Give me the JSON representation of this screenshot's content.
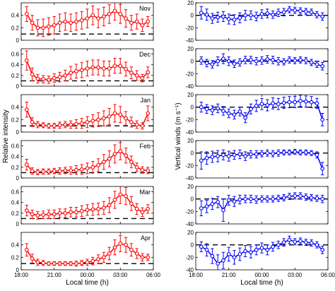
{
  "figure": {
    "left_ylabel": "Relative intensity",
    "right_ylabel": "Vertical winds (m s⁻¹)",
    "xlabel": "Local time (h)",
    "x_ticks": [
      {
        "value": 18,
        "label": "18:00"
      },
      {
        "value": 21,
        "label": "21:00"
      },
      {
        "value": 24,
        "label": "00:00"
      },
      {
        "value": 27,
        "label": "03:00"
      },
      {
        "value": 30,
        "label": "06:00"
      }
    ]
  },
  "colors": {
    "intensity": "#ff0000",
    "winds": "#0000ff",
    "reference": "#000000"
  },
  "chart_data": [
    {
      "type": "line",
      "panel": "intensity",
      "month": "Nov",
      "xlim": [
        18,
        30
      ],
      "ylim": [
        0,
        0.6
      ],
      "yticks": [
        0,
        0.2,
        0.4
      ],
      "yticklabels": [
        "0",
        "0.2",
        "0.4"
      ],
      "reference_y": 0.1,
      "x": [
        18.5,
        19,
        19.5,
        20,
        20.5,
        21,
        21.5,
        22,
        22.5,
        23,
        23.5,
        24,
        24.5,
        25,
        25.5,
        26,
        26.5,
        27,
        27.5,
        28,
        28.5,
        29,
        29.5
      ],
      "y": [
        0.42,
        0.28,
        0.2,
        0.2,
        0.22,
        0.24,
        0.28,
        0.3,
        0.28,
        0.3,
        0.32,
        0.35,
        0.4,
        0.35,
        0.38,
        0.42,
        0.47,
        0.42,
        0.35,
        0.28,
        0.3,
        0.24,
        0.3
      ],
      "err": [
        0.12,
        0.12,
        0.13,
        0.14,
        0.14,
        0.14,
        0.14,
        0.14,
        0.14,
        0.14,
        0.14,
        0.15,
        0.15,
        0.15,
        0.15,
        0.15,
        0.15,
        0.15,
        0.14,
        0.12,
        0.12,
        0.1,
        0.08
      ]
    },
    {
      "type": "line",
      "panel": "intensity",
      "month": "Dec",
      "xlim": [
        18,
        30
      ],
      "ylim": [
        0,
        0.7
      ],
      "yticks": [
        0,
        0.2,
        0.4,
        0.6
      ],
      "yticklabels": [
        "0",
        "0.2",
        "0.4",
        "0.6"
      ],
      "reference_y": 0.1,
      "x": [
        18.5,
        19,
        19.5,
        20,
        20.5,
        21,
        21.5,
        22,
        22.5,
        23,
        23.5,
        24,
        24.5,
        25,
        25.5,
        26,
        26.5,
        27,
        27.5,
        28,
        28.5,
        29,
        29.5
      ],
      "y": [
        0.48,
        0.22,
        0.14,
        0.13,
        0.12,
        0.15,
        0.17,
        0.2,
        0.25,
        0.28,
        0.3,
        0.33,
        0.35,
        0.35,
        0.33,
        0.33,
        0.38,
        0.38,
        0.32,
        0.25,
        0.2,
        0.15,
        0.26
      ],
      "err": [
        0.18,
        0.12,
        0.08,
        0.07,
        0.07,
        0.08,
        0.09,
        0.1,
        0.12,
        0.13,
        0.14,
        0.14,
        0.14,
        0.14,
        0.14,
        0.14,
        0.14,
        0.14,
        0.13,
        0.11,
        0.09,
        0.07,
        0.1
      ]
    },
    {
      "type": "line",
      "panel": "intensity",
      "month": "Jan",
      "xlim": [
        18,
        30
      ],
      "ylim": [
        0,
        0.6
      ],
      "yticks": [
        0,
        0.2,
        0.4
      ],
      "yticklabels": [
        "0",
        "0.2",
        "0.4"
      ],
      "reference_y": 0.1,
      "x": [
        18.5,
        19,
        19.5,
        20,
        20.5,
        21,
        21.5,
        22,
        22.5,
        23,
        23.5,
        24,
        24.5,
        25,
        25.5,
        26,
        26.5,
        27,
        27.5,
        28,
        28.5,
        29,
        29.5
      ],
      "y": [
        0.36,
        0.16,
        0.12,
        0.11,
        0.1,
        0.1,
        0.11,
        0.12,
        0.12,
        0.13,
        0.14,
        0.16,
        0.18,
        0.2,
        0.22,
        0.25,
        0.3,
        0.28,
        0.22,
        0.16,
        0.12,
        0.1,
        0.3
      ],
      "err": [
        0.12,
        0.07,
        0.05,
        0.04,
        0.04,
        0.04,
        0.05,
        0.05,
        0.06,
        0.07,
        0.08,
        0.09,
        0.1,
        0.11,
        0.12,
        0.13,
        0.14,
        0.13,
        0.11,
        0.08,
        0.06,
        0.05,
        0.12
      ]
    },
    {
      "type": "line",
      "panel": "intensity",
      "month": "Feb",
      "xlim": [
        18,
        30
      ],
      "ylim": [
        0,
        0.7
      ],
      "yticks": [
        0,
        0.2,
        0.4,
        0.6
      ],
      "yticklabels": [
        "0",
        "0.2",
        "0.4",
        "0.6"
      ],
      "reference_y": 0.1,
      "x": [
        18.5,
        19,
        19.5,
        20,
        20.5,
        21,
        21.5,
        22,
        22.5,
        23,
        23.5,
        24,
        24.5,
        25,
        25.5,
        26,
        26.5,
        27,
        27.5,
        28,
        28.5,
        29,
        29.5
      ],
      "y": [
        0.25,
        0.13,
        0.11,
        0.12,
        0.12,
        0.13,
        0.13,
        0.14,
        0.14,
        0.15,
        0.16,
        0.18,
        0.2,
        0.24,
        0.3,
        0.36,
        0.45,
        0.5,
        0.42,
        0.3,
        0.2,
        0.15,
        0.14
      ],
      "err": [
        0.1,
        0.06,
        0.05,
        0.05,
        0.05,
        0.05,
        0.06,
        0.06,
        0.07,
        0.08,
        0.09,
        0.1,
        0.11,
        0.12,
        0.14,
        0.15,
        0.17,
        0.16,
        0.14,
        0.11,
        0.08,
        0.06,
        0.06
      ]
    },
    {
      "type": "line",
      "panel": "intensity",
      "month": "Mar",
      "xlim": [
        18,
        30
      ],
      "ylim": [
        0,
        0.7
      ],
      "yticks": [
        0,
        0.2,
        0.4,
        0.6
      ],
      "yticklabels": [
        "0",
        "0.2",
        "0.4",
        "0.6"
      ],
      "reference_y": 0.1,
      "x": [
        18.5,
        19,
        19.5,
        20,
        20.5,
        21,
        21.5,
        22,
        22.5,
        23,
        23.5,
        24,
        24.5,
        25,
        25.5,
        26,
        26.5,
        27,
        27.5,
        28,
        28.5,
        29,
        29.5
      ],
      "y": [
        0.25,
        0.18,
        0.16,
        0.17,
        0.18,
        0.18,
        0.2,
        0.2,
        0.22,
        0.22,
        0.24,
        0.26,
        0.27,
        0.28,
        0.3,
        0.35,
        0.45,
        0.55,
        0.52,
        0.38,
        0.28,
        0.22,
        0.28
      ],
      "err": [
        0.1,
        0.08,
        0.07,
        0.07,
        0.08,
        0.08,
        0.08,
        0.08,
        0.09,
        0.09,
        0.1,
        0.1,
        0.11,
        0.11,
        0.12,
        0.14,
        0.16,
        0.17,
        0.16,
        0.13,
        0.1,
        0.08,
        0.08
      ]
    },
    {
      "type": "line",
      "panel": "intensity",
      "month": "Apr",
      "xlim": [
        18,
        30
      ],
      "ylim": [
        0,
        0.6
      ],
      "yticks": [
        0,
        0.2,
        0.4
      ],
      "yticklabels": [
        "0",
        "0.2",
        "0.4"
      ],
      "reference_y": 0.1,
      "x": [
        18.5,
        19,
        19.5,
        20,
        20.5,
        21,
        21.5,
        22,
        22.5,
        23,
        23.5,
        24,
        24.5,
        25,
        25.5,
        26,
        26.5,
        27,
        27.5,
        28,
        28.5,
        29,
        29.5
      ],
      "y": [
        0.32,
        0.18,
        0.12,
        0.11,
        0.1,
        0.1,
        0.1,
        0.1,
        0.1,
        0.1,
        0.11,
        0.12,
        0.14,
        0.17,
        0.2,
        0.26,
        0.36,
        0.42,
        0.4,
        0.32,
        0.26,
        0.2,
        0.2
      ],
      "err": [
        0.1,
        0.07,
        0.05,
        0.04,
        0.03,
        0.03,
        0.03,
        0.03,
        0.03,
        0.04,
        0.04,
        0.05,
        0.06,
        0.07,
        0.08,
        0.1,
        0.12,
        0.13,
        0.12,
        0.1,
        0.08,
        0.06,
        0.05
      ]
    },
    {
      "type": "line",
      "panel": "winds",
      "month": "Nov",
      "xlim": [
        18,
        30
      ],
      "ylim": [
        -40,
        20
      ],
      "yticks": [
        -40,
        -20,
        0,
        20
      ],
      "yticklabels": [
        "-40",
        "-20",
        "0",
        "20"
      ],
      "reference_y": 0,
      "x": [
        18.5,
        19,
        19.5,
        20,
        20.5,
        21,
        21.5,
        22,
        22.5,
        23,
        23.5,
        24,
        24.5,
        25,
        25.5,
        26,
        26.5,
        27,
        27.5,
        28,
        28.5,
        29,
        29.5
      ],
      "y": [
        4,
        1,
        -5,
        -3,
        -2,
        -6,
        -7,
        -4,
        0,
        0,
        -2,
        2,
        3,
        1,
        4,
        5,
        9,
        8,
        7,
        6,
        5,
        1,
        -2
      ],
      "err": [
        10,
        9,
        8,
        8,
        8,
        8,
        8,
        8,
        8,
        7,
        7,
        7,
        7,
        6,
        6,
        6,
        5,
        5,
        5,
        5,
        5,
        5,
        6
      ]
    },
    {
      "type": "line",
      "panel": "winds",
      "month": "Dec",
      "xlim": [
        18,
        30
      ],
      "ylim": [
        -40,
        20
      ],
      "yticks": [
        -40,
        -20,
        0,
        20
      ],
      "yticklabels": [
        "-40",
        "-20",
        "0",
        "20"
      ],
      "reference_y": 0,
      "x": [
        18.5,
        19,
        19.5,
        20,
        20.5,
        21,
        21.5,
        22,
        22.5,
        23,
        23.5,
        24,
        24.5,
        25,
        25.5,
        26,
        26.5,
        27,
        27.5,
        28,
        28.5,
        29,
        29.5
      ],
      "y": [
        1,
        -3,
        -5,
        0,
        4,
        0,
        -4,
        -2,
        2,
        2,
        0,
        1,
        3,
        2,
        0,
        -1,
        2,
        1,
        2,
        1,
        -2,
        -5,
        -8
      ],
      "err": [
        6,
        6,
        6,
        7,
        8,
        7,
        6,
        6,
        6,
        6,
        6,
        6,
        6,
        6,
        6,
        5,
        5,
        5,
        5,
        5,
        5,
        5,
        6
      ]
    },
    {
      "type": "line",
      "panel": "winds",
      "month": "Jan",
      "xlim": [
        18,
        30
      ],
      "ylim": [
        -40,
        20
      ],
      "yticks": [
        -40,
        -20,
        0,
        20
      ],
      "yticklabels": [
        "-40",
        "-20",
        "0",
        "20"
      ],
      "reference_y": 0,
      "x": [
        18.5,
        19,
        19.5,
        20,
        20.5,
        21,
        21.5,
        22,
        22.5,
        23,
        23.5,
        24,
        24.5,
        25,
        25.5,
        26,
        26.5,
        27,
        27.5,
        28,
        28.5,
        29,
        29.5
      ],
      "y": [
        0,
        -3,
        -5,
        -2,
        -6,
        -10,
        -12,
        -7,
        -17,
        -3,
        2,
        5,
        3,
        6,
        5,
        7,
        8,
        8,
        10,
        9,
        8,
        6,
        -20
      ],
      "err": [
        8,
        7,
        7,
        7,
        7,
        7,
        7,
        7,
        8,
        8,
        9,
        9,
        9,
        9,
        9,
        9,
        9,
        9,
        9,
        9,
        9,
        8,
        10
      ]
    },
    {
      "type": "line",
      "panel": "winds",
      "month": "Feb",
      "xlim": [
        18,
        30
      ],
      "ylim": [
        -40,
        20
      ],
      "yticks": [
        -40,
        -20,
        0,
        20
      ],
      "yticklabels": [
        "-40",
        "-20",
        "0",
        "20"
      ],
      "reference_y": 0,
      "x": [
        18.5,
        19,
        19.5,
        20,
        20.5,
        21,
        21.5,
        22,
        22.5,
        23,
        23.5,
        24,
        24.5,
        25,
        25.5,
        26,
        26.5,
        27,
        27.5,
        28,
        28.5,
        29,
        29.5
      ],
      "y": [
        -12,
        -8,
        -6,
        -5,
        -3,
        -5,
        -3,
        -2,
        -5,
        -2,
        -2,
        -1,
        0,
        -1,
        0,
        1,
        1,
        2,
        1,
        1,
        0,
        -3,
        -25
      ],
      "err": [
        14,
        10,
        9,
        9,
        8,
        8,
        7,
        7,
        7,
        6,
        6,
        5,
        5,
        5,
        5,
        4,
        4,
        4,
        4,
        4,
        4,
        5,
        10
      ]
    },
    {
      "type": "line",
      "panel": "winds",
      "month": "Mar",
      "xlim": [
        18,
        30
      ],
      "ylim": [
        -40,
        20
      ],
      "yticks": [
        -40,
        -20,
        0,
        20
      ],
      "yticklabels": [
        "-40",
        "-20",
        "0",
        "20"
      ],
      "reference_y": 0,
      "x": [
        18.5,
        19,
        19.5,
        20,
        20.5,
        21,
        21.5,
        22,
        22.5,
        23,
        23.5,
        24,
        24.5,
        25,
        25.5,
        26,
        26.5,
        27,
        27.5,
        28,
        28.5,
        29,
        29.5
      ],
      "y": [
        -15,
        -12,
        -8,
        -5,
        -18,
        -2,
        -4,
        -1,
        0,
        0,
        -1,
        0,
        0,
        0,
        1,
        2,
        4,
        5,
        5,
        3,
        2,
        1,
        0
      ],
      "err": [
        12,
        10,
        9,
        9,
        18,
        8,
        8,
        7,
        6,
        6,
        6,
        5,
        5,
        5,
        5,
        5,
        5,
        5,
        5,
        5,
        5,
        5,
        6
      ]
    },
    {
      "type": "line",
      "panel": "winds",
      "month": "Apr",
      "xlim": [
        18,
        30
      ],
      "ylim": [
        -40,
        20
      ],
      "yticks": [
        -40,
        -20,
        0,
        20
      ],
      "yticklabels": [
        "-40",
        "-20",
        "0",
        "20"
      ],
      "reference_y": 0,
      "x": [
        18.5,
        19,
        19.5,
        20,
        20.5,
        21,
        21.5,
        22,
        22.5,
        23,
        23.5,
        24,
        24.5,
        25,
        25.5,
        26,
        26.5,
        27,
        27.5,
        28,
        28.5,
        29,
        29.5
      ],
      "y": [
        -3,
        -8,
        -18,
        -30,
        -25,
        -15,
        -20,
        -15,
        -10,
        -12,
        -8,
        -5,
        -8,
        -3,
        0,
        4,
        8,
        5,
        6,
        4,
        3,
        0,
        -8
      ],
      "err": [
        8,
        10,
        12,
        14,
        13,
        11,
        11,
        10,
        9,
        9,
        8,
        8,
        8,
        7,
        6,
        6,
        6,
        5,
        5,
        5,
        5,
        5,
        6
      ]
    }
  ]
}
